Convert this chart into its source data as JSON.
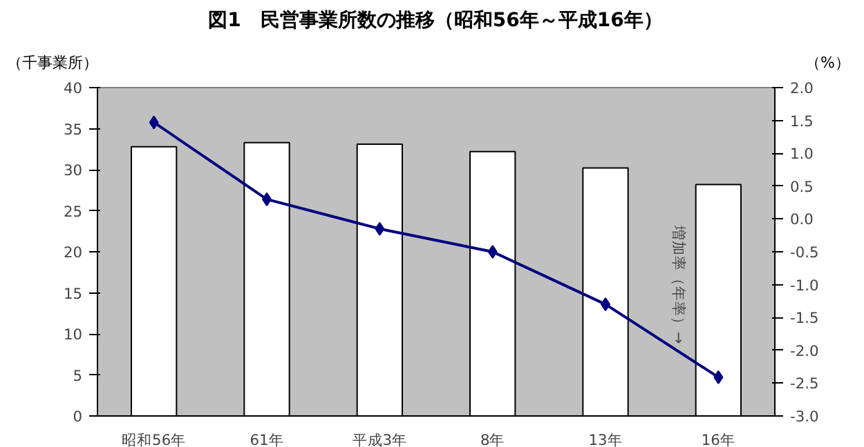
{
  "chart_data": {
    "type": "bar",
    "title": "図1　民営事業所数の推移（昭和56年～平成16年）",
    "ylabel": "（千事業所）",
    "y2label": "（%）",
    "categories": [
      "昭和56年",
      "61年",
      "平成3年",
      "8年",
      "13年",
      "16年"
    ],
    "series": [
      {
        "color": "#ffffff",
        "values": [
          32.8,
          33.3,
          33.1,
          32.2,
          30.2,
          28.2
        ]
      },
      {
        "type": "line",
        "axis": "y2",
        "color": "#000080",
        "marker": "diamond",
        "values": [
          1.47,
          0.3,
          -0.15,
          -0.5,
          -1.3,
          -2.41
        ]
      }
    ],
    "ylim": [
      0,
      40
    ],
    "yticks": [
      0,
      5,
      10,
      15,
      20,
      25,
      30,
      35,
      40
    ],
    "y2lim": [
      -3.0,
      2.0
    ],
    "y2ticks": [
      {
        "value": -3,
        "label": "-3.0"
      },
      {
        "value": -2.5,
        "label": "-2.5"
      },
      {
        "value": -2,
        "label": "-2.0"
      },
      {
        "value": -1.5,
        "label": "-1.5"
      },
      {
        "value": -1,
        "label": "-1.0"
      },
      {
        "value": -0.5,
        "label": "-0.5"
      },
      {
        "value": 0,
        "label": "0.0"
      },
      {
        "value": 0.5,
        "label": "0.5"
      },
      {
        "value": 1,
        "label": "1.0"
      },
      {
        "value": 1.5,
        "label": "1.5"
      },
      {
        "value": 2,
        "label": "2.0"
      }
    ],
    "annotations": [
      "増加率（年率）→"
    ],
    "grid": false
  }
}
